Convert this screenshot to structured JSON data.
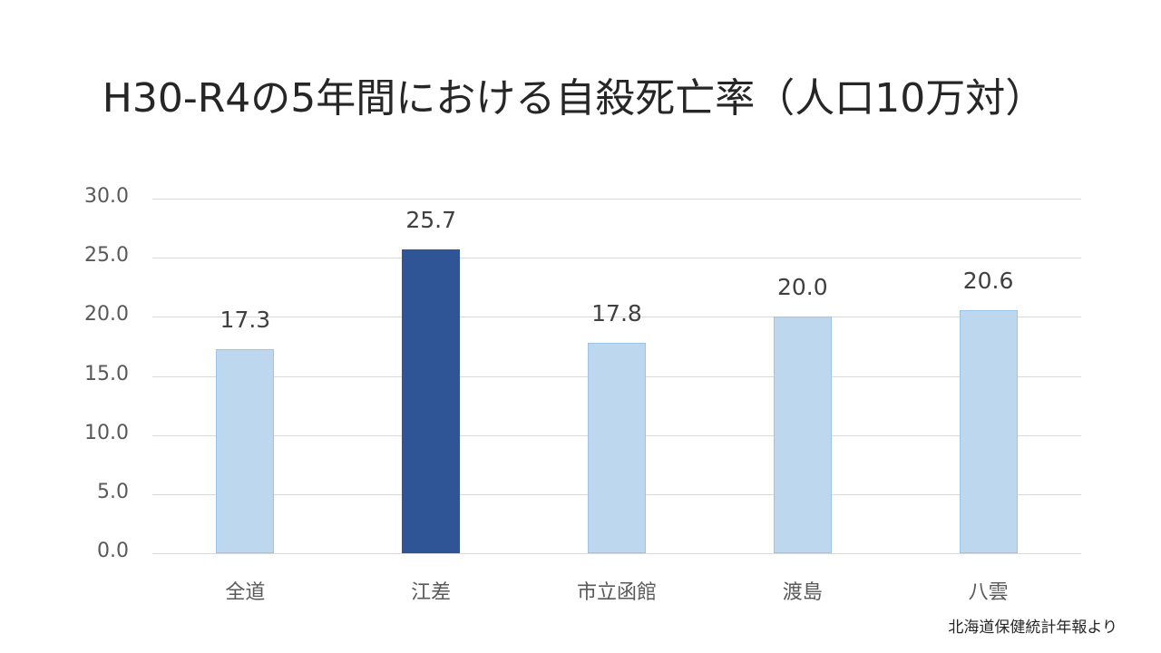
{
  "title": "H30-R4の5年間における自殺死亡率（人口10万対）",
  "source_note": "北海道保健統計年報より",
  "colors": {
    "normal": "#bdd7ee",
    "highlight": "#2f5597",
    "grid": "#d9d9d9"
  },
  "chart_data": {
    "type": "bar",
    "title": "H30-R4の5年間における自殺死亡率（人口10万対）",
    "xlabel": "",
    "ylabel": "",
    "categories": [
      "全道",
      "江差",
      "市立函館",
      "渡島",
      "八雲"
    ],
    "values": [
      17.3,
      25.7,
      17.8,
      20.0,
      20.6
    ],
    "value_labels": [
      "17.3",
      "25.7",
      "17.8",
      "20.0",
      "20.6"
    ],
    "highlight_index": 1,
    "ylim": [
      0,
      30
    ],
    "yticks": [
      "0.0",
      "5.0",
      "10.0",
      "15.0",
      "20.0",
      "25.0",
      "30.0"
    ],
    "grid": true,
    "legend": "none",
    "annotation": "北海道保健統計年報より"
  }
}
